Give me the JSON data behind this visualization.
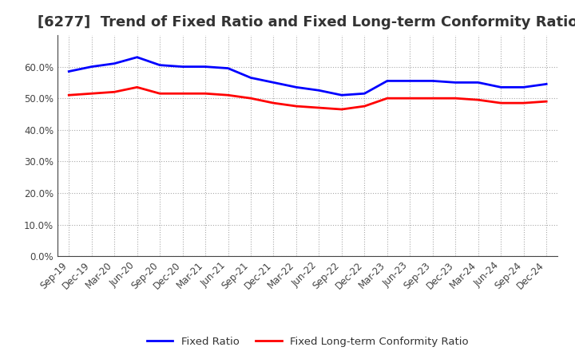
{
  "title": "[6277]  Trend of Fixed Ratio and Fixed Long-term Conformity Ratio",
  "x_labels": [
    "Sep-19",
    "Dec-19",
    "Mar-20",
    "Jun-20",
    "Sep-20",
    "Dec-20",
    "Mar-21",
    "Jun-21",
    "Sep-21",
    "Dec-21",
    "Mar-22",
    "Jun-22",
    "Sep-22",
    "Dec-22",
    "Mar-23",
    "Jun-23",
    "Sep-23",
    "Dec-23",
    "Mar-24",
    "Jun-24",
    "Sep-24",
    "Dec-24"
  ],
  "fixed_ratio": [
    58.5,
    60.0,
    61.0,
    63.0,
    60.5,
    60.0,
    60.0,
    59.5,
    56.5,
    55.0,
    53.5,
    52.5,
    51.0,
    51.5,
    55.5,
    55.5,
    55.5,
    55.0,
    55.0,
    53.5,
    53.5,
    54.5
  ],
  "fixed_lt_ratio": [
    51.0,
    51.5,
    52.0,
    53.5,
    51.5,
    51.5,
    51.5,
    51.0,
    50.0,
    48.5,
    47.5,
    47.0,
    46.5,
    47.5,
    50.0,
    50.0,
    50.0,
    50.0,
    49.5,
    48.5,
    48.5,
    49.0
  ],
  "fixed_ratio_color": "#0000FF",
  "fixed_lt_ratio_color": "#FF0000",
  "ylim": [
    0,
    70
  ],
  "yticks": [
    0,
    10,
    20,
    30,
    40,
    50,
    60
  ],
  "background_color": "#FFFFFF",
  "grid_color": "#AAAAAA",
  "legend_fixed": "Fixed Ratio",
  "legend_lt": "Fixed Long-term Conformity Ratio",
  "title_fontsize": 13,
  "tick_fontsize": 8.5,
  "legend_fontsize": 9.5
}
